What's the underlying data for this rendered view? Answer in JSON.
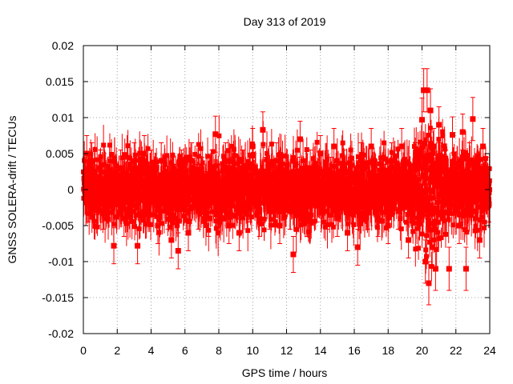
{
  "chart_data": {
    "type": "scatter",
    "title": "Day 313 of 2019",
    "xlabel": "GPS time / hours",
    "ylabel": "GNSS SOLERA-drift / TECUs",
    "xlim": [
      0,
      24
    ],
    "ylim": [
      -0.02,
      0.02
    ],
    "x_ticks": [
      "0",
      "2",
      "4",
      "6",
      "8",
      "10",
      "12",
      "14",
      "16",
      "18",
      "20",
      "22",
      "24"
    ],
    "y_ticks": [
      "-0.02",
      "-0.015",
      "-0.01",
      "-0.005",
      "0",
      "0.005",
      "0.01",
      "0.015",
      "0.02"
    ],
    "grid": true,
    "error_bars": true,
    "marker_color": "#ff0000",
    "series": [
      {
        "x": [
          0.1,
          0.2,
          0.3,
          0.4,
          0.5,
          0.7,
          0.9,
          1.0,
          1.2,
          1.4,
          1.6,
          1.8,
          1.95,
          2.2,
          2.4,
          2.6,
          2.8,
          3.0,
          3.2,
          3.4,
          3.6,
          3.8,
          4.0,
          4.2,
          4.4,
          4.6,
          4.8,
          5.0,
          5.2,
          5.4,
          5.6,
          5.8,
          6.0,
          6.2,
          6.4,
          6.6,
          6.8,
          7.0,
          7.2,
          7.4,
          7.6,
          7.8,
          8.0,
          8.2,
          8.4,
          8.6,
          8.8,
          9.0,
          9.2,
          9.4,
          9.6,
          9.8,
          10.0,
          10.2,
          10.4,
          10.6,
          10.8,
          11.0,
          11.2,
          11.4,
          11.6,
          11.8,
          12.0,
          12.2,
          12.4,
          12.6,
          12.8,
          13.0,
          13.2,
          13.4,
          13.6,
          13.8,
          14.0,
          14.2,
          14.4,
          14.6,
          14.8,
          15.0,
          15.2,
          15.4,
          15.6,
          15.8,
          16.0,
          16.2,
          16.4,
          16.6,
          16.8,
          17.0,
          17.2,
          17.4,
          17.6,
          17.8,
          18.0,
          18.2,
          18.4,
          18.6,
          18.8,
          19.0,
          19.2,
          19.4,
          19.6,
          19.8,
          20.0,
          20.1,
          20.2,
          20.3,
          20.4,
          20.5,
          20.6,
          20.7,
          20.8,
          21.0,
          21.2,
          21.4,
          21.6,
          21.8,
          22.0,
          22.2,
          22.4,
          22.6,
          22.8,
          23.0,
          23.2,
          23.4,
          23.6,
          23.8,
          23.95
        ],
        "y": [
          0.002,
          0.005,
          -0.002,
          0.001,
          0.004,
          -0.001,
          0.0,
          0.003,
          -0.003,
          0.001,
          0.002,
          -0.0078,
          0.001,
          0.003,
          -0.004,
          0.002,
          0.0,
          0.004,
          -0.0078,
          0.001,
          0.005,
          -0.002,
          0.003,
          0.0,
          -0.005,
          0.004,
          0.002,
          -0.003,
          -0.007,
          0.001,
          -0.0085,
          0.003,
          0.0,
          -0.006,
          0.004,
          0.001,
          -0.003,
          0.002,
          0.0,
          -0.004,
          0.003,
          0.0077,
          -0.002,
          0.001,
          0.004,
          -0.005,
          0.002,
          0.0,
          -0.006,
          0.003,
          0.001,
          -0.002,
          0.006,
          0.0,
          -0.004,
          0.0083,
          0.002,
          -0.003,
          0.001,
          0.004,
          -0.005,
          0.0,
          0.002,
          -0.003,
          -0.009,
          0.001,
          0.007,
          0.0,
          -0.004,
          0.003,
          0.001,
          -0.002,
          0.005,
          0.0,
          -0.003,
          0.002,
          0.006,
          -0.004,
          0.001,
          0.003,
          -0.006,
          0.002,
          0.0,
          -0.008,
          0.004,
          0.001,
          -0.003,
          0.006,
          0.0,
          -0.004,
          0.002,
          0.001,
          -0.005,
          0.004,
          0.0,
          -0.003,
          0.006,
          0.002,
          -0.007,
          0.001,
          0.004,
          -0.002,
          0.0097,
          0.0138,
          -0.01,
          0.0138,
          -0.013,
          0.011,
          -0.008,
          0.006,
          -0.011,
          0.009,
          -0.004,
          0.003,
          -0.011,
          0.0076,
          0.002,
          -0.005,
          0.008,
          -0.011,
          0.004,
          0.0098,
          -0.003,
          -0.007,
          0.006,
          0.002,
          -0.002
        ]
      }
    ]
  }
}
